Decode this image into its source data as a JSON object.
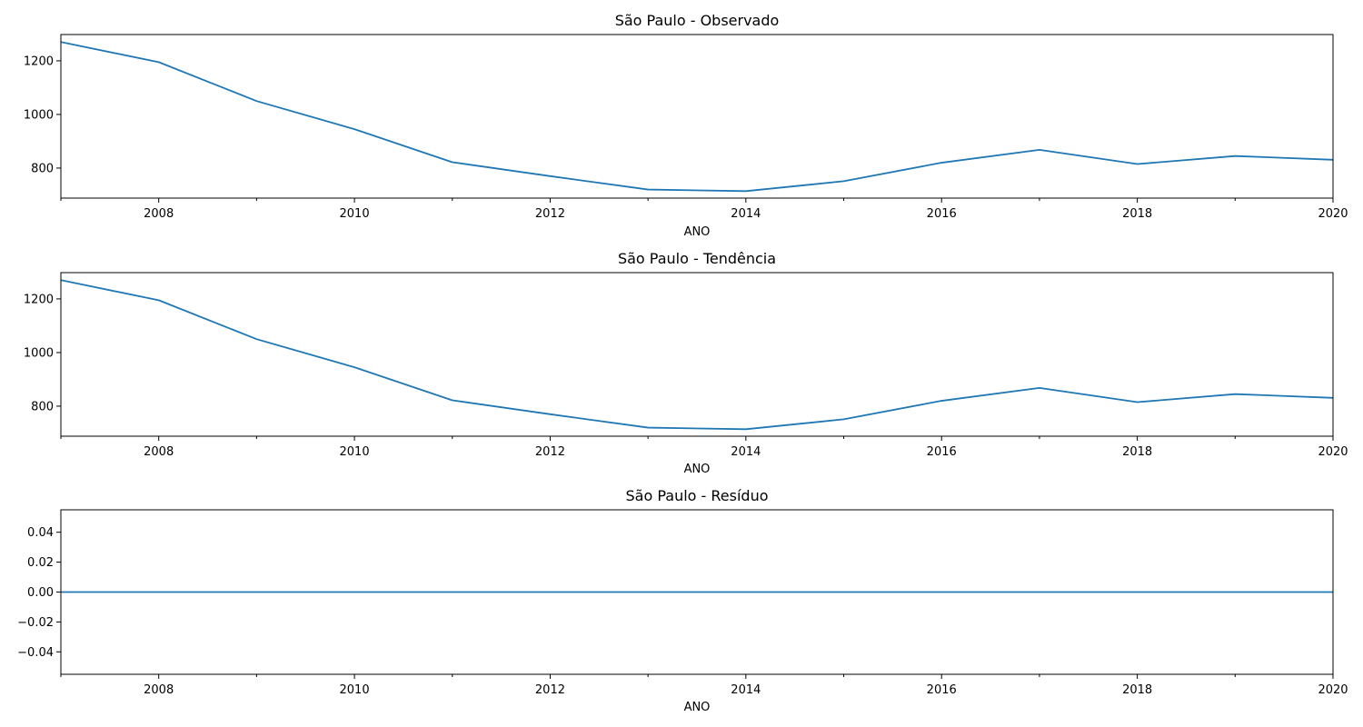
{
  "colors": {
    "series": "#1f77b4",
    "axes": "#000000",
    "background": "#ffffff"
  },
  "chart_data": [
    {
      "type": "line",
      "title": "São Paulo - Observado",
      "xlabel": "ANO",
      "ylabel": "",
      "grid": false,
      "xlim": [
        2007,
        2020
      ],
      "ylim": [
        688,
        1298
      ],
      "xticks": [
        2008,
        2010,
        2012,
        2014,
        2016,
        2018,
        2020
      ],
      "xticks_minor": [
        2007,
        2009,
        2011,
        2013,
        2015,
        2017,
        2019
      ],
      "yticks": [
        800,
        1000,
        1200
      ],
      "x": [
        2007,
        2008,
        2009,
        2010,
        2011,
        2012,
        2013,
        2014,
        2015,
        2016,
        2017,
        2018,
        2019,
        2020
      ],
      "series": [
        {
          "values": [
            1270,
            1195,
            1050,
            945,
            822,
            770,
            720,
            714,
            751,
            820,
            868,
            815,
            845,
            831
          ]
        }
      ]
    },
    {
      "type": "line",
      "title": "São Paulo - Tendência",
      "xlabel": "ANO",
      "ylabel": "",
      "grid": false,
      "xlim": [
        2007,
        2020
      ],
      "ylim": [
        688,
        1298
      ],
      "xticks": [
        2008,
        2010,
        2012,
        2014,
        2016,
        2018,
        2020
      ],
      "xticks_minor": [
        2007,
        2009,
        2011,
        2013,
        2015,
        2017,
        2019
      ],
      "yticks": [
        800,
        1000,
        1200
      ],
      "x": [
        2007,
        2008,
        2009,
        2010,
        2011,
        2012,
        2013,
        2014,
        2015,
        2016,
        2017,
        2018,
        2019,
        2020
      ],
      "series": [
        {
          "values": [
            1270,
            1195,
            1050,
            945,
            822,
            770,
            720,
            714,
            751,
            820,
            868,
            815,
            845,
            831
          ]
        }
      ]
    },
    {
      "type": "line",
      "title": "São Paulo - Resíduo",
      "xlabel": "ANO",
      "ylabel": "",
      "grid": false,
      "xlim": [
        2007,
        2020
      ],
      "ylim": [
        -0.055,
        0.055
      ],
      "xticks": [
        2008,
        2010,
        2012,
        2014,
        2016,
        2018,
        2020
      ],
      "xticks_minor": [
        2007,
        2009,
        2011,
        2013,
        2015,
        2017,
        2019
      ],
      "yticks": [
        -0.04,
        -0.02,
        0.0,
        0.02,
        0.04
      ],
      "ytick_labels": [
        "−0.04",
        "−0.02",
        "0.00",
        "0.02",
        "0.04"
      ],
      "x": [
        2007,
        2008,
        2009,
        2010,
        2011,
        2012,
        2013,
        2014,
        2015,
        2016,
        2017,
        2018,
        2019,
        2020
      ],
      "series": [
        {
          "values": [
            0,
            0,
            0,
            0,
            0,
            0,
            0,
            0,
            0,
            0,
            0,
            0,
            0,
            0
          ]
        }
      ]
    }
  ]
}
